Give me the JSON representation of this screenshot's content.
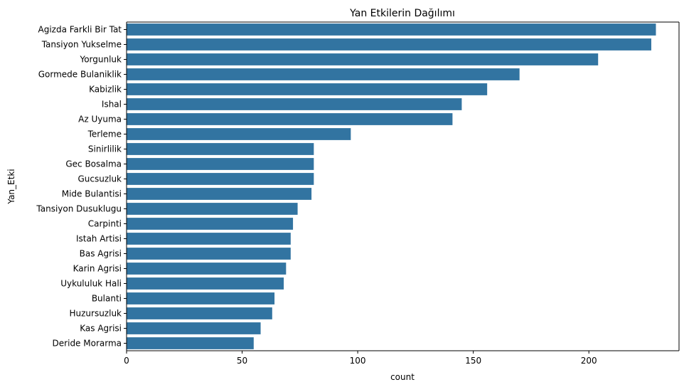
{
  "chart_data": {
    "type": "bar",
    "orientation": "horizontal",
    "title": "Yan Etkilerin Dağılımı",
    "xlabel": "count",
    "ylabel": "Yan_Etki",
    "xlim": [
      0,
      239
    ],
    "xticks": [
      0,
      50,
      100,
      150,
      200
    ],
    "grid": false,
    "bar_color": "#3274a1",
    "categories": [
      "Agizda Farkli Bir Tat",
      "Tansiyon Yukselme",
      "Yorgunluk",
      "Gormede Bulaniklik",
      "Kabizlik",
      "Ishal",
      "Az Uyuma",
      "Terleme",
      "Sinirlilik",
      "Gec Bosalma",
      "Gucsuzluk",
      "Mide Bulantisi",
      "Tansiyon Dusuklugu",
      "Carpinti",
      "Istah Artisi",
      "Bas Agrisi",
      "Karin Agrisi",
      "Uykululuk Hali",
      "Bulanti",
      "Huzursuzluk",
      "Kas Agrisi",
      "Deride Morarma"
    ],
    "values": [
      229,
      227,
      204,
      170,
      156,
      145,
      141,
      97,
      81,
      81,
      81,
      80,
      74,
      72,
      71,
      71,
      69,
      68,
      64,
      63,
      58,
      55
    ]
  }
}
